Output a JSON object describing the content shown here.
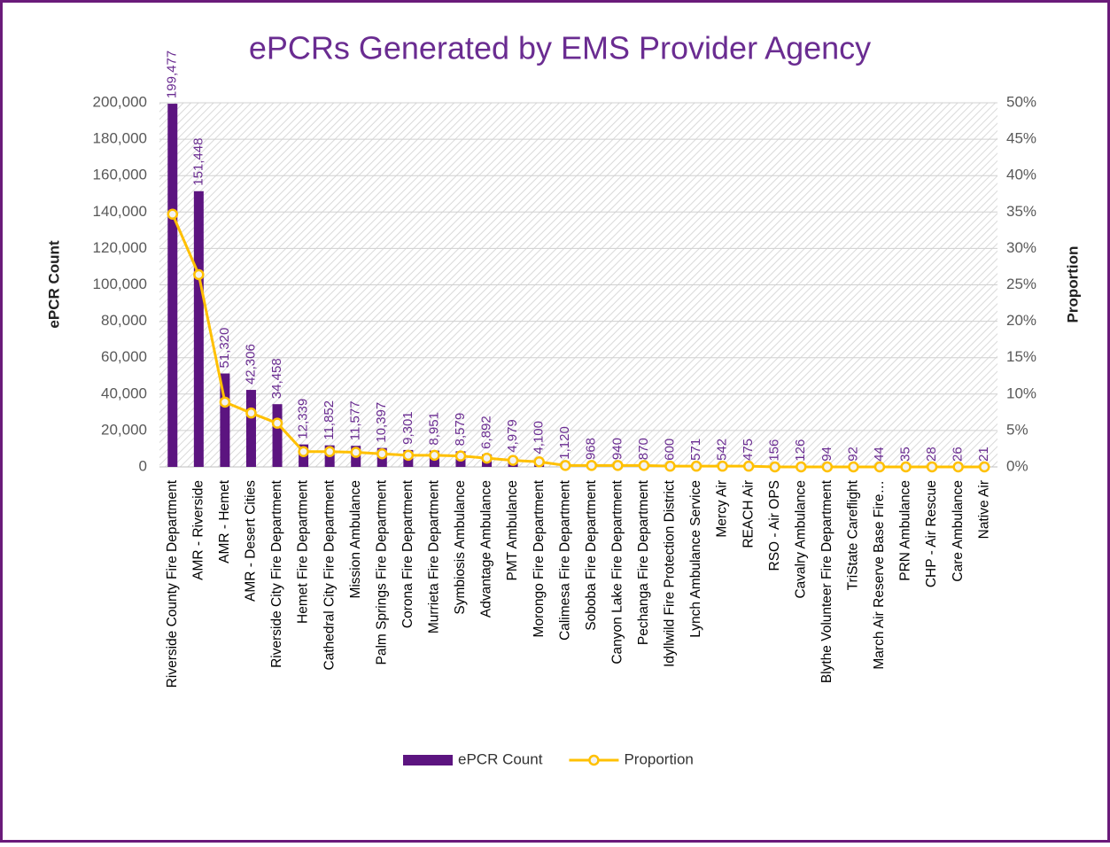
{
  "chart_data": {
    "type": "bar",
    "title": "ePCRs Generated by EMS Provider Agency",
    "y_label": "ePCR Count",
    "y2_label": "Proportion",
    "categories": [
      "Riverside County Fire Department",
      "AMR - Riverside",
      "AMR - Hemet",
      "AMR - Desert Cities",
      "Riverside City Fire Department",
      "Hemet Fire Department",
      "Cathedral City Fire Department",
      "Mission Ambulance",
      "Palm Springs Fire Department",
      "Corona Fire Department",
      "Murrieta Fire Department",
      "Symbiosis Ambulance",
      "Advantage Ambulance",
      "PMT Ambulance",
      "Morongo Fire Department",
      "Calimesa Fire Department",
      "Soboba Fire Department",
      "Canyon Lake Fire Department",
      "Pechanga Fire Department",
      "Idyllwild Fire Protection District",
      "Lynch Ambulance Service",
      "Mercy Air",
      "REACH Air",
      "RSO - Air OPS",
      "Cavalry Ambulance",
      "Blythe Volunteer Fire Department",
      "TriState Careflight",
      "March Air Reserve Base Fire…",
      "PRN Ambulance",
      "CHP - Air Rescue",
      "Care Ambulance",
      "Native Air"
    ],
    "series": [
      {
        "name": "ePCR Count",
        "type": "bar",
        "color": "#5c1480",
        "values": [
          199477,
          151448,
          51320,
          42306,
          34458,
          12339,
          11852,
          11577,
          10397,
          9301,
          8951,
          8579,
          6892,
          4979,
          4100,
          1120,
          968,
          940,
          870,
          600,
          571,
          542,
          475,
          156,
          126,
          94,
          92,
          44,
          35,
          28,
          26,
          21
        ],
        "value_labels": [
          "199,477",
          "151,448",
          "51,320",
          "42,306",
          "34,458",
          "12,339",
          "11,852",
          "11,577",
          "10,397",
          "9,301",
          "8,951",
          "8,579",
          "6,892",
          "4,979",
          "4,100",
          "1,120",
          "968",
          "940",
          "870",
          "600",
          "571",
          "542",
          "475",
          "156",
          "126",
          "94",
          "92",
          "44",
          "35",
          "28",
          "26",
          "21"
        ]
      },
      {
        "name": "Proportion",
        "type": "line",
        "axis": "y2",
        "color": "#ffc000",
        "values": [
          34.7,
          26.4,
          8.9,
          7.4,
          6.0,
          2.1,
          2.1,
          2.0,
          1.8,
          1.6,
          1.6,
          1.5,
          1.2,
          0.9,
          0.7,
          0.2,
          0.2,
          0.2,
          0.2,
          0.1,
          0.1,
          0.1,
          0.1,
          0.0,
          0.0,
          0.0,
          0.0,
          0.0,
          0.0,
          0.0,
          0.0,
          0.0
        ]
      }
    ],
    "ylim": [
      0,
      200000
    ],
    "yticks": [
      0,
      {
        "value": 20000,
        "label": "20,000"
      },
      {
        "value": 40000,
        "label": "40,000"
      },
      {
        "value": 60000,
        "label": "60,000"
      },
      {
        "value": 80000,
        "label": "80,000"
      },
      {
        "value": 100000,
        "label": "100,000"
      },
      {
        "value": 120000,
        "label": "120,000"
      },
      {
        "value": 140000,
        "label": "140,000"
      },
      {
        "value": 160000,
        "label": "160,000"
      },
      {
        "value": 180000,
        "label": "180,000"
      },
      {
        "value": 200000,
        "label": "200,000"
      }
    ],
    "y2lim": [
      0,
      50
    ],
    "y2ticks": [
      {
        "value": 0,
        "label": "0%"
      },
      {
        "value": 5,
        "label": "5%"
      },
      {
        "value": 10,
        "label": "10%"
      },
      {
        "value": 15,
        "label": "15%"
      },
      {
        "value": 20,
        "label": "20%"
      },
      {
        "value": 25,
        "label": "25%"
      },
      {
        "value": 30,
        "label": "30%"
      },
      {
        "value": 35,
        "label": "35%"
      },
      {
        "value": 40,
        "label": "40%"
      },
      {
        "value": 45,
        "label": "45%"
      },
      {
        "value": 50,
        "label": "50%"
      }
    ],
    "grid": true,
    "legend": "bottom"
  }
}
